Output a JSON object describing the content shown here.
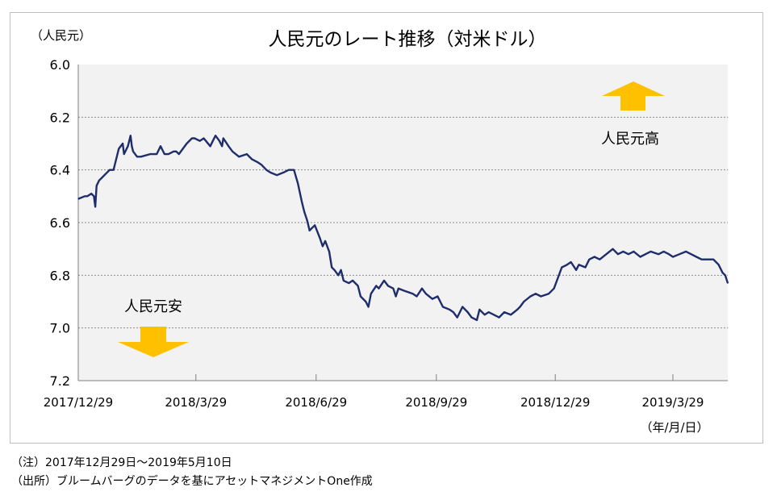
{
  "chart_data": {
    "type": "line",
    "title": "人民元のレート推移（対米ドル）",
    "ylabel": "（人民元）",
    "xlabel": "（年/月/日）",
    "y_inverted": true,
    "ylim": [
      6.0,
      7.2
    ],
    "yticks": [
      6.0,
      6.2,
      6.4,
      6.6,
      6.8,
      7.0,
      7.2
    ],
    "ytick_labels": [
      "6.0",
      "6.2",
      "6.4",
      "6.6",
      "6.8",
      "7.0",
      "7.2"
    ],
    "xlim": [
      "2017-12-29",
      "2019-05-10"
    ],
    "xticks": [
      "2017-12-29",
      "2018-03-29",
      "2018-06-29",
      "2018-09-29",
      "2018-12-29",
      "2019-03-29"
    ],
    "xtick_labels": [
      "2017/12/29",
      "2018/3/29",
      "2018/6/29",
      "2018/9/29",
      "2018/12/29",
      "2019/3/29"
    ],
    "grid": "horizontal dotted",
    "plot_background": "#f2f2f2",
    "line_color": "#1f2d6b",
    "annotations": {
      "up_label": "人民元高",
      "down_label": "人民元安",
      "arrow_color": "#ffc000"
    },
    "series": [
      {
        "name": "",
        "x": [
          "2017-12-29",
          "2018-01-03",
          "2018-01-05",
          "2018-01-08",
          "2018-01-10",
          "2018-01-11",
          "2018-01-12",
          "2018-01-14",
          "2018-01-16",
          "2018-01-18",
          "2018-01-22",
          "2018-01-25",
          "2018-01-29",
          "2018-02-01",
          "2018-02-02",
          "2018-02-05",
          "2018-02-07",
          "2018-02-08",
          "2018-02-09",
          "2018-02-12",
          "2018-02-15",
          "2018-02-22",
          "2018-02-27",
          "2018-03-02",
          "2018-03-05",
          "2018-03-08",
          "2018-03-12",
          "2018-03-14",
          "2018-03-16",
          "2018-03-19",
          "2018-03-22",
          "2018-03-26",
          "2018-03-28",
          "2018-04-01",
          "2018-04-04",
          "2018-04-09",
          "2018-04-11",
          "2018-04-13",
          "2018-04-16",
          "2018-04-18",
          "2018-04-19",
          "2018-04-23",
          "2018-04-26",
          "2018-05-01",
          "2018-05-07",
          "2018-05-11",
          "2018-05-15",
          "2018-05-18",
          "2018-05-22",
          "2018-05-25",
          "2018-05-30",
          "2018-06-04",
          "2018-06-08",
          "2018-06-12",
          "2018-06-15",
          "2018-06-18",
          "2018-06-20",
          "2018-06-22",
          "2018-06-24",
          "2018-06-26",
          "2018-06-28",
          "2018-07-02",
          "2018-07-04",
          "2018-07-06",
          "2018-07-09",
          "2018-07-11",
          "2018-07-13",
          "2018-07-16",
          "2018-07-18",
          "2018-07-20",
          "2018-07-24",
          "2018-07-27",
          "2018-07-31",
          "2018-08-02",
          "2018-08-06",
          "2018-08-08",
          "2018-08-10",
          "2018-08-14",
          "2018-08-16",
          "2018-08-20",
          "2018-08-23",
          "2018-08-27",
          "2018-08-29",
          "2018-08-31",
          "2018-09-05",
          "2018-09-11",
          "2018-09-14",
          "2018-09-18",
          "2018-09-21",
          "2018-09-26",
          "2018-09-30",
          "2018-10-04",
          "2018-10-09",
          "2018-10-12",
          "2018-10-15",
          "2018-10-19",
          "2018-10-23",
          "2018-10-26",
          "2018-10-30",
          "2018-11-01",
          "2018-11-05",
          "2018-11-08",
          "2018-11-12",
          "2018-11-16",
          "2018-11-20",
          "2018-11-25",
          "2018-11-30",
          "2018-12-02",
          "2018-12-05",
          "2018-12-10",
          "2018-12-14",
          "2018-12-18",
          "2018-12-24",
          "2018-12-28",
          "2019-01-03",
          "2019-01-07",
          "2019-01-10",
          "2019-01-14",
          "2019-01-16",
          "2019-01-21",
          "2019-01-24",
          "2019-01-28",
          "2019-02-01",
          "2019-02-06",
          "2019-02-11",
          "2019-02-15",
          "2019-02-19",
          "2019-02-23",
          "2019-02-27",
          "2019-03-04",
          "2019-03-08",
          "2019-03-12",
          "2019-03-18",
          "2019-03-22",
          "2019-03-26",
          "2019-03-29",
          "2019-04-03",
          "2019-04-08",
          "2019-04-12",
          "2019-04-16",
          "2019-04-20",
          "2019-04-24",
          "2019-04-29",
          "2019-05-03",
          "2019-05-06",
          "2019-05-08",
          "2019-05-10"
        ],
        "values": [
          6.51,
          6.5,
          6.5,
          6.49,
          6.5,
          6.54,
          6.46,
          6.44,
          6.43,
          6.42,
          6.4,
          6.4,
          6.32,
          6.3,
          6.34,
          6.31,
          6.27,
          6.31,
          6.33,
          6.35,
          6.35,
          6.34,
          6.34,
          6.31,
          6.34,
          6.34,
          6.33,
          6.33,
          6.34,
          6.32,
          6.3,
          6.28,
          6.28,
          6.29,
          6.28,
          6.31,
          6.29,
          6.27,
          6.29,
          6.31,
          6.28,
          6.31,
          6.33,
          6.35,
          6.34,
          6.36,
          6.37,
          6.38,
          6.4,
          6.41,
          6.42,
          6.41,
          6.4,
          6.4,
          6.45,
          6.52,
          6.56,
          6.59,
          6.63,
          6.62,
          6.61,
          6.66,
          6.69,
          6.67,
          6.71,
          6.77,
          6.78,
          6.8,
          6.78,
          6.82,
          6.83,
          6.82,
          6.84,
          6.88,
          6.9,
          6.92,
          6.87,
          6.84,
          6.85,
          6.82,
          6.84,
          6.85,
          6.88,
          6.85,
          6.86,
          6.87,
          6.88,
          6.85,
          6.87,
          6.89,
          6.88,
          6.92,
          6.93,
          6.94,
          6.96,
          6.92,
          6.94,
          6.96,
          6.97,
          6.93,
          6.95,
          6.94,
          6.95,
          6.96,
          6.94,
          6.95,
          6.93,
          6.92,
          6.9,
          6.88,
          6.87,
          6.88,
          6.87,
          6.85,
          6.77,
          6.76,
          6.75,
          6.78,
          6.76,
          6.77,
          6.74,
          6.73,
          6.74,
          6.72,
          6.7,
          6.72,
          6.71,
          6.72,
          6.71,
          6.73,
          6.72,
          6.71,
          6.72,
          6.71,
          6.72,
          6.73,
          6.72,
          6.71,
          6.72,
          6.73,
          6.74,
          6.74,
          6.74,
          6.76,
          6.79,
          6.8,
          6.83
        ]
      }
    ]
  },
  "notes": [
    "（注）2017年12月29日～2019年5月10日",
    "（出所）ブルームバーグのデータを基にアセットマネジメントOne作成"
  ]
}
